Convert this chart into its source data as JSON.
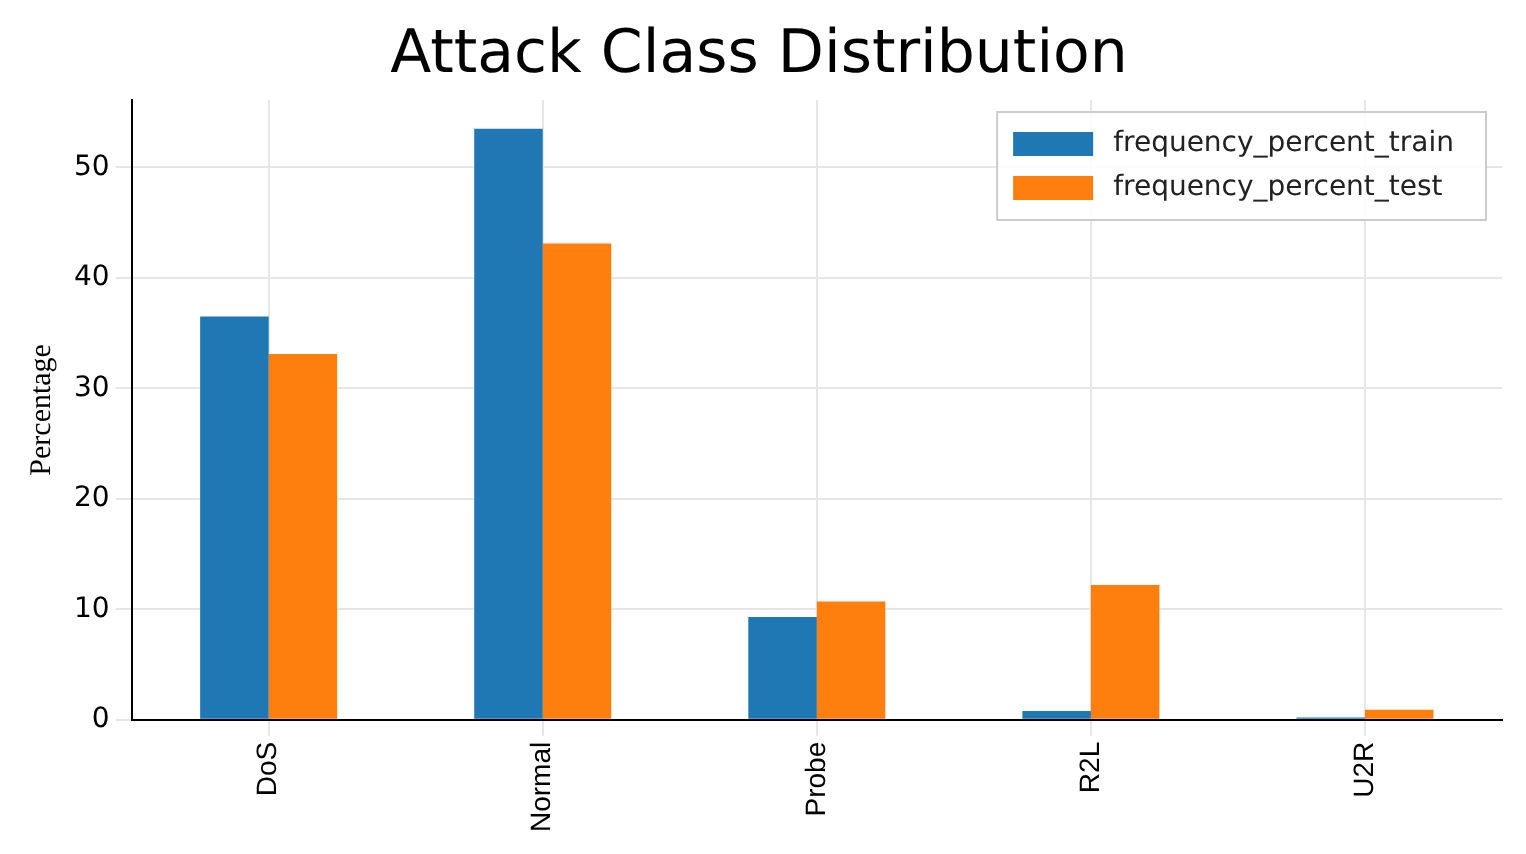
{
  "chart_data": {
    "type": "bar",
    "title": "Attack Class Distribution",
    "ylabel": "Percentage",
    "categories": [
      "DoS",
      "Normal",
      "Probe",
      "R2L",
      "U2R"
    ],
    "series": [
      {
        "name": "frequency_percent_train",
        "color": "#1f77b4",
        "values": [
          36.5,
          53.5,
          9.3,
          0.8,
          0.2
        ]
      },
      {
        "name": "frequency_percent_test",
        "color": "#ff7f0e",
        "values": [
          33.1,
          43.1,
          10.7,
          12.2,
          0.9
        ]
      }
    ],
    "ylim": [
      0,
      56.1
    ],
    "yticks": [
      0,
      10,
      20,
      30,
      40,
      50
    ],
    "grid": true,
    "legend": "top right"
  }
}
